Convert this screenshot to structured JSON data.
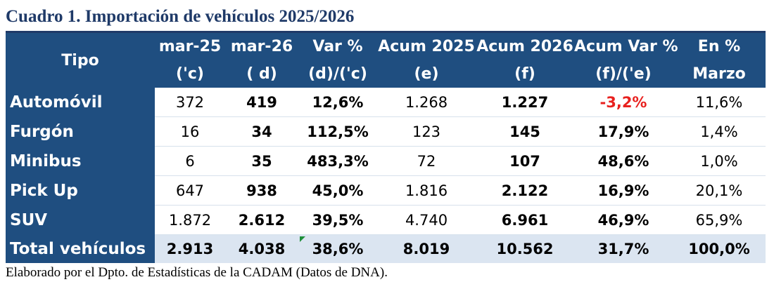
{
  "title": "Cuadro 1. Importación de vehículos 2025/2026",
  "header": {
    "tipo": "Tipo",
    "columns": [
      {
        "line1": "mar-25",
        "line2": "('c)"
      },
      {
        "line1": "mar-26",
        "line2": "( d)"
      },
      {
        "line1": "Var %",
        "line2": "(d)/('c)"
      },
      {
        "line1": "Acum 2025",
        "line2": "(e)"
      },
      {
        "line1": "Acum 2026",
        "line2": "(f)"
      },
      {
        "line1": "Acum Var %",
        "line2": "(f)/('e)"
      },
      {
        "line1": "En %",
        "line2": "Marzo"
      }
    ]
  },
  "rows": [
    {
      "tipo": "Automóvil",
      "values": [
        "372",
        "419",
        "12,6%",
        "1.268",
        "1.227",
        "-3,2%",
        "11,6%"
      ]
    },
    {
      "tipo": "Furgón",
      "values": [
        "16",
        "34",
        "112,5%",
        "123",
        "145",
        "17,9%",
        "1,4%"
      ]
    },
    {
      "tipo": "Minibus",
      "values": [
        "6",
        "35",
        "483,3%",
        "72",
        "107",
        "48,6%",
        "1,0%"
      ]
    },
    {
      "tipo": "Pick Up",
      "values": [
        "647",
        "938",
        "45,0%",
        "1.816",
        "2.122",
        "16,9%",
        "20,1%"
      ]
    },
    {
      "tipo": "SUV",
      "values": [
        "1.872",
        "2.612",
        "39,5%",
        "4.740",
        "6.961",
        "46,9%",
        "65,9%"
      ]
    }
  ],
  "total": {
    "tipo": "Total vehículos",
    "values": [
      "2.913",
      "4.038",
      "38,6%",
      "8.019",
      "10.562",
      "31,7%",
      "100,0%"
    ]
  },
  "colors": {
    "header_bg": "#1f4e80",
    "title": "#1f3a68",
    "negative": "#e8201e",
    "total_bg": "#dbe5f1"
  },
  "footer": "Elaborado por el Dpto. de Estadísticas de la CADAM (Datos de DNA)."
}
